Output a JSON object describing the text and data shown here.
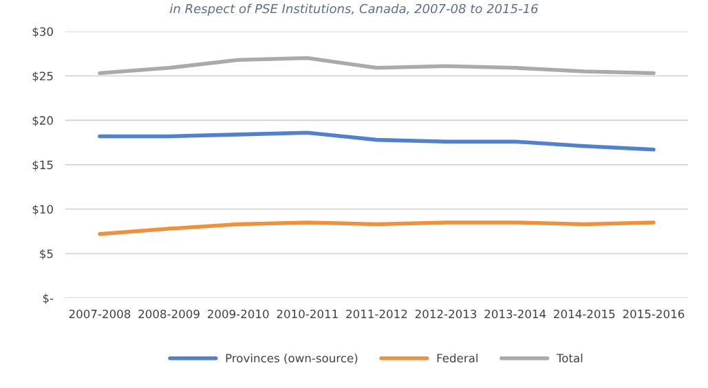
{
  "chart_data": {
    "type": "line",
    "subtitle": "in Respect of PSE Institutions, Canada, 2007-08 to 2015-16",
    "categories": [
      "2007-2008",
      "2008-2009",
      "2009-2010",
      "2010-2011",
      "2011-2012",
      "2012-2013",
      "2013-2014",
      "2014-2015",
      "2015-2016"
    ],
    "series": [
      {
        "name": "Provinces (own-source)",
        "color": "#4f81d0",
        "values": [
          18.2,
          18.2,
          18.4,
          18.6,
          17.8,
          17.6,
          17.6,
          17.1,
          16.7
        ]
      },
      {
        "name": "Federal",
        "color": "#f0913a",
        "values": [
          7.2,
          7.8,
          8.3,
          8.5,
          8.3,
          8.5,
          8.5,
          8.3,
          8.5
        ]
      },
      {
        "name": "Total",
        "color": "#aaaaaa",
        "values": [
          25.3,
          25.9,
          26.8,
          27.0,
          25.9,
          26.1,
          25.9,
          25.5,
          25.3
        ]
      }
    ],
    "ylim": [
      0,
      30
    ],
    "yticks": [
      {
        "value": 0,
        "label": "$-"
      },
      {
        "value": 5,
        "label": "$5"
      },
      {
        "value": 10,
        "label": "$10"
      },
      {
        "value": 15,
        "label": "$15"
      },
      {
        "value": 20,
        "label": "$20"
      },
      {
        "value": 25,
        "label": "$25"
      },
      {
        "value": 30,
        "label": "$30"
      }
    ],
    "grid": "y",
    "legend": "bottom",
    "marker": "none",
    "line_style": "solid"
  }
}
